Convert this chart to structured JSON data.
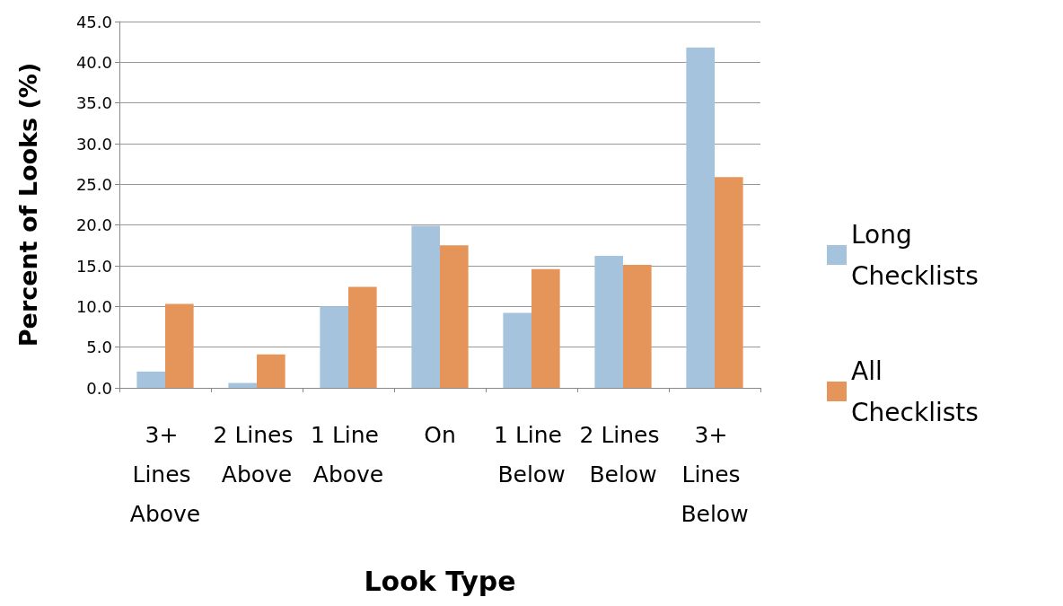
{
  "chart_data": {
    "type": "bar",
    "xlabel": "Look Type",
    "ylabel": "Percent of Looks (%)",
    "categories": [
      "3+ Lines Above",
      "2 Lines Above",
      "1 Line Above",
      "On",
      "1 Line Below",
      "2 Lines Below",
      "3+ Lines Below"
    ],
    "series": [
      {
        "name": "Long Checklists",
        "color": "#a5c3dc",
        "values": [
          2.0,
          0.6,
          10.0,
          19.9,
          9.2,
          16.2,
          41.8
        ]
      },
      {
        "name": "All Checklists",
        "color": "#e6955a",
        "values": [
          10.3,
          4.1,
          12.4,
          17.5,
          14.6,
          15.1,
          25.9
        ]
      }
    ],
    "ylim": [
      0,
      45
    ],
    "yticks": [
      {
        "value": 0,
        "label": "0.0"
      },
      {
        "value": 5,
        "label": "5.0"
      },
      {
        "value": 10,
        "label": "10.0"
      },
      {
        "value": 15,
        "label": "15.0"
      },
      {
        "value": 20,
        "label": "20.0"
      },
      {
        "value": 25,
        "label": "25.0"
      },
      {
        "value": 30,
        "label": "30.0"
      },
      {
        "value": 35,
        "label": "35.0"
      },
      {
        "value": 40,
        "label": "40.0"
      },
      {
        "value": 45,
        "label": "45.0"
      }
    ],
    "grid": "y",
    "legend": "right"
  }
}
